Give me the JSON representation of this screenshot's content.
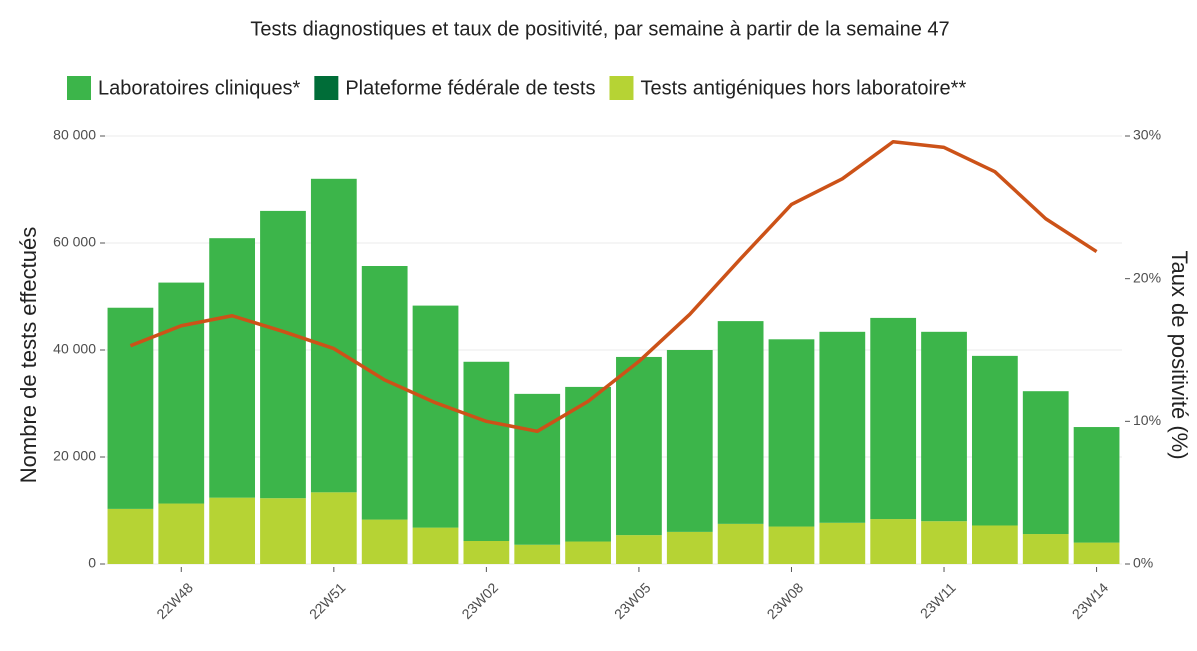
{
  "chart_data": {
    "type": "bar",
    "title": "Tests diagnostiques et taux de positivité, par semaine à partir de la semaine 47",
    "y_label": "Nombre de tests effectués",
    "y2_label": "Taux de positivité (%)",
    "categories": [
      null,
      "22W48",
      null,
      null,
      "22W51",
      null,
      null,
      "23W02",
      null,
      null,
      "23W05",
      null,
      null,
      "23W08",
      null,
      null,
      "23W11",
      null,
      null,
      "23W14"
    ],
    "stacked": true,
    "series": [
      {
        "name": "Laboratoires cliniques*",
        "color": "#3cb54a",
        "values": [
          37600,
          41300,
          48500,
          53700,
          58600,
          47400,
          41500,
          33500,
          28200,
          28900,
          33300,
          34000,
          37900,
          35000,
          35700,
          37600,
          35400,
          31700,
          26700,
          21600
        ]
      },
      {
        "name": "Plateforme fédérale de tests",
        "color": "#006d38",
        "values": [
          0,
          0,
          0,
          0,
          0,
          0,
          0,
          0,
          0,
          0,
          0,
          0,
          0,
          0,
          0,
          0,
          0,
          0,
          0,
          0
        ]
      },
      {
        "name": "Tests antigéniques hors laboratoire**",
        "color": "#b6d334",
        "values": [
          10300,
          11300,
          12400,
          12300,
          13400,
          8300,
          6800,
          4300,
          3600,
          4200,
          5400,
          6000,
          7500,
          7000,
          7700,
          8400,
          8000,
          7200,
          5600,
          4000
        ]
      },
      {
        "type": "line",
        "axis": "y2",
        "color": "#cc5218",
        "values": [
          15.3,
          16.7,
          17.4,
          16.3,
          15.1,
          12.9,
          11.3,
          10.0,
          9.3,
          11.4,
          14.2,
          17.5,
          21.4,
          25.2,
          27.0,
          29.6,
          29.2,
          27.5,
          24.2,
          21.9
        ]
      }
    ],
    "ylim": [
      0,
      80000
    ],
    "yticks": [
      0,
      {
        "value": 20000,
        "label": "20 000"
      },
      {
        "value": 40000,
        "label": "40 000"
      },
      {
        "value": 60000,
        "label": "60 000"
      },
      {
        "value": 80000,
        "label": "80 000"
      }
    ],
    "y2lim": [
      0,
      30
    ],
    "y2ticks": [
      {
        "value": 0,
        "label": "0%"
      },
      {
        "value": 10,
        "label": "10%"
      },
      {
        "value": 20,
        "label": "20%"
      },
      {
        "value": 30,
        "label": "30%"
      }
    ],
    "grid": true,
    "legend": "top"
  }
}
